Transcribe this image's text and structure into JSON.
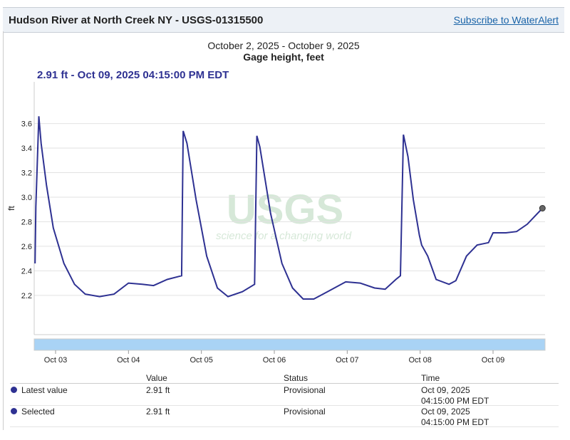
{
  "header": {
    "title": "Hudson River at North Creek NY - USGS-01315500",
    "link": "Subscribe to WaterAlert"
  },
  "chart_data": {
    "type": "line",
    "subtitle": "October 2, 2025 - October 9, 2025",
    "title": "Gage height, feet",
    "tooltip": "2.91 ft - Oct 09, 2025 04:15:00 PM EDT",
    "y_label": "ft",
    "watermark": [
      "USGS",
      "science for a changing world"
    ],
    "x": [
      "2025-10-02T17:15",
      "2025-10-02T17:30",
      "2025-10-02T18:30",
      "2025-10-02T19:15",
      "2025-10-02T21:00",
      "2025-10-02T23:15",
      "2025-10-03T02:45",
      "2025-10-03T06:15",
      "2025-10-03T09:45",
      "2025-10-03T14:30",
      "2025-10-03T19:15",
      "2025-10-04T00:00",
      "2025-10-04T04:30",
      "2025-10-04T08:15",
      "2025-10-04T12:45",
      "2025-10-04T17:30",
      "2025-10-04T18:00",
      "2025-10-04T19:15",
      "2025-10-04T22:15",
      "2025-10-05T01:45",
      "2025-10-05T05:15",
      "2025-10-05T08:45",
      "2025-10-05T13:30",
      "2025-10-05T17:30",
      "2025-10-05T18:15",
      "2025-10-05T19:15",
      "2025-10-05T22:45",
      "2025-10-06T02:30",
      "2025-10-06T06:00",
      "2025-10-06T09:30",
      "2025-10-06T13:00",
      "2025-10-06T17:30",
      "2025-10-06T23:30",
      "2025-10-07T04:15",
      "2025-10-07T09:00",
      "2025-10-07T12:30",
      "2025-10-07T16:00",
      "2025-10-07T17:30",
      "2025-10-07T18:30",
      "2025-10-07T20:00",
      "2025-10-07T21:45",
      "2025-10-07T23:45",
      "2025-10-08T00:30",
      "2025-10-08T02:30",
      "2025-10-08T05:15",
      "2025-10-08T09:30",
      "2025-10-08T11:45",
      "2025-10-08T15:15",
      "2025-10-08T18:45",
      "2025-10-08T22:30",
      "2025-10-09T00:00",
      "2025-10-09T04:15",
      "2025-10-09T07:45",
      "2025-10-09T11:15",
      "2025-10-09T16:15"
    ],
    "series": [
      {
        "name": "Gage height",
        "color": "#2e3192",
        "values": [
          2.46,
          2.92,
          3.66,
          3.44,
          3.1,
          2.75,
          2.46,
          2.29,
          2.21,
          2.19,
          2.21,
          2.3,
          2.29,
          2.28,
          2.33,
          2.36,
          3.54,
          3.44,
          2.98,
          2.52,
          2.26,
          2.19,
          2.23,
          2.29,
          3.5,
          3.41,
          2.87,
          2.46,
          2.26,
          2.17,
          2.17,
          2.23,
          2.31,
          2.3,
          2.26,
          2.25,
          2.33,
          2.36,
          3.51,
          3.33,
          2.98,
          2.69,
          2.61,
          2.52,
          2.33,
          2.29,
          2.32,
          2.52,
          2.61,
          2.63,
          2.71,
          2.71,
          2.72,
          2.78,
          2.91
        ]
      }
    ],
    "xlim": [
      "2025-10-02T16:58",
      "2025-10-09T17:07"
    ],
    "xticks": [
      {
        "value": "2025-10-03T00:00",
        "label": "Oct 03"
      },
      {
        "value": "2025-10-04T00:00",
        "label": "Oct 04"
      },
      {
        "value": "2025-10-05T00:00",
        "label": "Oct 05"
      },
      {
        "value": "2025-10-06T00:00",
        "label": "Oct 06"
      },
      {
        "value": "2025-10-07T00:00",
        "label": "Oct 07"
      },
      {
        "value": "2025-10-08T00:00",
        "label": "Oct 08"
      },
      {
        "value": "2025-10-09T00:00",
        "label": "Oct 09"
      }
    ],
    "ylim": [
      1.88,
      3.94
    ],
    "yticks": [
      2.2,
      2.4,
      2.6,
      2.8,
      {
        "value": 3,
        "label": "3.0"
      },
      3.2,
      3.4,
      3.6
    ],
    "grid": true
  },
  "table": {
    "columns": [
      "Value",
      "Status",
      "Time"
    ],
    "rows": [
      {
        "name": "Latest value",
        "value": "2.91 ft",
        "status": "Provisional",
        "date": "Oct 09, 2025",
        "time": "04:15:00 PM EDT"
      },
      {
        "name": "Selected",
        "value": "2.91 ft",
        "status": "Provisional",
        "date": "Oct 09, 2025",
        "time": "04:15:00 PM EDT"
      }
    ]
  }
}
